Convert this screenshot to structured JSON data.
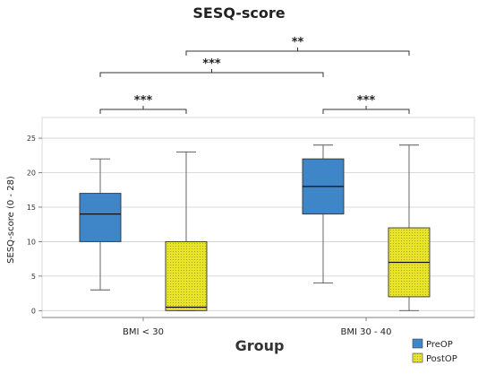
{
  "chart_data": {
    "type": "box",
    "title": "SESQ-score",
    "xlabel": "Group",
    "ylabel": "SESQ-score (0 - 28)",
    "ylim": [
      -1,
      28
    ],
    "yticks": [
      0,
      5,
      10,
      15,
      20,
      25
    ],
    "grid": true,
    "legend_position": "bottom-right",
    "categories": [
      "BMI < 30",
      "BMI 30 - 40"
    ],
    "series": [
      {
        "name": "PreOP",
        "color": "#3f86c9",
        "boxes": [
          {
            "min": 3,
            "q1": 10,
            "median": 14,
            "q3": 17,
            "max": 22
          },
          {
            "min": 4,
            "q1": 14,
            "median": 18,
            "q3": 22,
            "max": 24
          }
        ]
      },
      {
        "name": "PostOP",
        "color": "#e7e429",
        "boxes": [
          {
            "min": 0,
            "q1": 0,
            "median": 0.5,
            "q3": 10,
            "max": 23
          },
          {
            "min": 0,
            "q1": 2,
            "median": 7,
            "q3": 12,
            "max": 24
          }
        ]
      }
    ],
    "significance": [
      {
        "label": "***",
        "from": "BMI < 30 PreOP",
        "to": "BMI < 30 PostOP"
      },
      {
        "label": "***",
        "from": "BMI 30 - 40 PreOP",
        "to": "BMI 30 - 40 PostOP"
      },
      {
        "label": "***",
        "from": "BMI < 30 PreOP",
        "to": "BMI 30 - 40 PreOP"
      },
      {
        "label": "**",
        "from": "BMI < 30 PostOP",
        "to": "BMI 30 - 40 PostOP"
      }
    ]
  }
}
